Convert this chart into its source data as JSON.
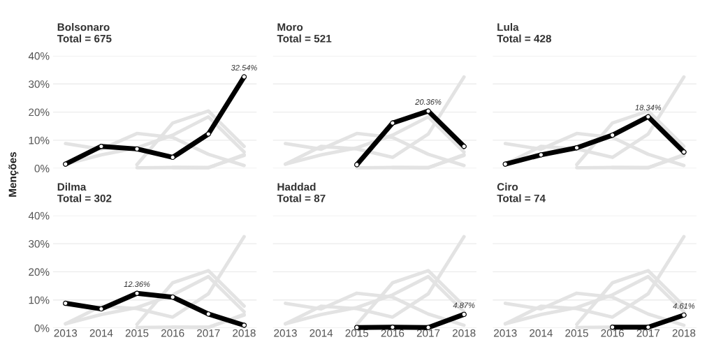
{
  "chart_data": [
    {
      "type": "line",
      "title": "Bolsonaro\nTotal = 675",
      "categories": [
        "2013",
        "2014",
        "2015",
        "2016",
        "2017",
        "2018"
      ],
      "ylim": [
        0,
        40
      ],
      "yticks": [
        {
          "value": 0,
          "label": "0%"
        },
        {
          "value": 10,
          "label": "10%"
        },
        {
          "value": 20,
          "label": "20%"
        },
        {
          "value": 30,
          "label": "30%"
        },
        {
          "value": 40,
          "label": "40%"
        }
      ],
      "grid": "y",
      "legend": false,
      "tick_labels": "y",
      "series": [
        {
          "color": "#e3e3e3",
          "values": [
            null,
            null,
            1.3,
            16.1,
            20.4,
            7.8
          ]
        },
        {
          "color": "#e3e3e3",
          "values": [
            1.5,
            4.8,
            7.3,
            11.8,
            18.3,
            5.8
          ]
        },
        {
          "color": "#e3e3e3",
          "values": [
            8.8,
            6.8,
            12.4,
            11.0,
            5.0,
            1.0
          ]
        },
        {
          "color": "#e3e3e3",
          "values": [
            null,
            null,
            null,
            0.3,
            0.3,
            4.6
          ]
        },
        {
          "color": "#e3e3e3",
          "values": [
            null,
            null,
            0.2,
            0.3,
            0.2,
            4.9
          ]
        },
        {
          "color": "#000000",
          "marker": "circle",
          "values": [
            1.5,
            7.8,
            6.9,
            3.9,
            12.2,
            32.54
          ],
          "value_labels": [
            null,
            null,
            null,
            null,
            null,
            "32.54%"
          ]
        }
      ]
    },
    {
      "type": "line",
      "title": "Moro\nTotal = 521",
      "categories": [
        "2013",
        "2014",
        "2015",
        "2016",
        "2017",
        "2018"
      ],
      "ylim": [
        0,
        40
      ],
      "yticks": [
        {
          "value": 0,
          "label": null
        },
        {
          "value": 10,
          "label": null
        },
        {
          "value": 20,
          "label": null
        },
        {
          "value": 30,
          "label": null
        },
        {
          "value": 40,
          "label": null
        }
      ],
      "grid": "y",
      "legend": false,
      "tick_labels": false,
      "series": [
        {
          "color": "#e3e3e3",
          "values": [
            1.5,
            7.8,
            6.9,
            3.9,
            12.2,
            32.5
          ]
        },
        {
          "color": "#e3e3e3",
          "values": [
            1.5,
            4.8,
            7.3,
            11.8,
            18.3,
            5.8
          ]
        },
        {
          "color": "#e3e3e3",
          "values": [
            8.8,
            6.8,
            12.4,
            11.0,
            5.0,
            1.0
          ]
        },
        {
          "color": "#e3e3e3",
          "values": [
            null,
            null,
            0.2,
            0.3,
            0.2,
            4.9
          ]
        },
        {
          "color": "#e3e3e3",
          "values": [
            null,
            null,
            null,
            0.3,
            0.3,
            4.6
          ]
        },
        {
          "color": "#000000",
          "marker": "circle",
          "values": [
            null,
            null,
            1.3,
            16.1,
            20.36,
            7.8
          ],
          "value_labels": [
            null,
            null,
            null,
            null,
            "20.36%",
            null
          ]
        }
      ]
    },
    {
      "type": "line",
      "title": "Lula\nTotal = 428",
      "categories": [
        "2013",
        "2014",
        "2015",
        "2016",
        "2017",
        "2018"
      ],
      "ylim": [
        0,
        40
      ],
      "yticks": [
        {
          "value": 0,
          "label": null
        },
        {
          "value": 10,
          "label": null
        },
        {
          "value": 20,
          "label": null
        },
        {
          "value": 30,
          "label": null
        },
        {
          "value": 40,
          "label": null
        }
      ],
      "grid": "y",
      "legend": false,
      "tick_labels": false,
      "series": [
        {
          "color": "#e3e3e3",
          "values": [
            1.5,
            7.8,
            6.9,
            3.9,
            12.2,
            32.5
          ]
        },
        {
          "color": "#e3e3e3",
          "values": [
            null,
            null,
            1.3,
            16.1,
            20.4,
            7.8
          ]
        },
        {
          "color": "#e3e3e3",
          "values": [
            8.8,
            6.8,
            12.4,
            11.0,
            5.0,
            1.0
          ]
        },
        {
          "color": "#e3e3e3",
          "values": [
            null,
            null,
            0.2,
            0.3,
            0.2,
            4.9
          ]
        },
        {
          "color": "#e3e3e3",
          "values": [
            null,
            null,
            null,
            0.3,
            0.3,
            4.6
          ]
        },
        {
          "color": "#000000",
          "marker": "circle",
          "values": [
            1.5,
            4.8,
            7.3,
            11.8,
            18.34,
            5.8
          ],
          "value_labels": [
            null,
            null,
            null,
            null,
            "18.34%",
            null
          ]
        }
      ]
    },
    {
      "type": "line",
      "title": "Dilma\nTotal = 302",
      "ylabel": "Menções",
      "categories": [
        "2013",
        "2014",
        "2015",
        "2016",
        "2017",
        "2018"
      ],
      "ylim": [
        0,
        40
      ],
      "yticks": [
        {
          "value": 0,
          "label": "0%"
        },
        {
          "value": 10,
          "label": "10%"
        },
        {
          "value": 20,
          "label": "20%"
        },
        {
          "value": 30,
          "label": "30%"
        },
        {
          "value": 40,
          "label": "40%"
        }
      ],
      "grid": "y",
      "legend": false,
      "series": [
        {
          "color": "#e3e3e3",
          "values": [
            1.5,
            7.8,
            6.9,
            3.9,
            12.2,
            32.5
          ]
        },
        {
          "color": "#e3e3e3",
          "values": [
            null,
            null,
            1.3,
            16.1,
            20.4,
            7.8
          ]
        },
        {
          "color": "#e3e3e3",
          "values": [
            1.5,
            4.8,
            7.3,
            11.8,
            18.3,
            5.8
          ]
        },
        {
          "color": "#e3e3e3",
          "values": [
            null,
            null,
            0.2,
            0.3,
            0.2,
            4.9
          ]
        },
        {
          "color": "#e3e3e3",
          "values": [
            null,
            null,
            null,
            0.3,
            0.3,
            4.6
          ]
        },
        {
          "color": "#000000",
          "marker": "circle",
          "values": [
            8.8,
            6.8,
            12.36,
            11.0,
            5.0,
            1.0
          ],
          "value_labels": [
            null,
            null,
            "12.36%",
            null,
            null,
            null
          ]
        }
      ]
    },
    {
      "type": "line",
      "title": "Haddad\nTotal = 87",
      "categories": [
        "2013",
        "2014",
        "2015",
        "2016",
        "2017",
        "2018"
      ],
      "ylim": [
        0,
        40
      ],
      "yticks": [
        {
          "value": 0,
          "label": null
        },
        {
          "value": 10,
          "label": null
        },
        {
          "value": 20,
          "label": null
        },
        {
          "value": 30,
          "label": null
        },
        {
          "value": 40,
          "label": null
        }
      ],
      "grid": "y",
      "legend": false,
      "tick_labels": "x",
      "series": [
        {
          "color": "#e3e3e3",
          "values": [
            1.5,
            7.8,
            6.9,
            3.9,
            12.2,
            32.5
          ]
        },
        {
          "color": "#e3e3e3",
          "values": [
            null,
            null,
            1.3,
            16.1,
            20.4,
            7.8
          ]
        },
        {
          "color": "#e3e3e3",
          "values": [
            1.5,
            4.8,
            7.3,
            11.8,
            18.3,
            5.8
          ]
        },
        {
          "color": "#e3e3e3",
          "values": [
            8.8,
            6.8,
            12.4,
            11.0,
            5.0,
            1.0
          ]
        },
        {
          "color": "#000000",
          "marker": "circle",
          "values": [
            null,
            null,
            0.2,
            0.3,
            0.2,
            4.87
          ],
          "value_labels": [
            null,
            null,
            null,
            null,
            null,
            "4.87%"
          ]
        }
      ]
    },
    {
      "type": "line",
      "title": "Ciro\nTotal = 74",
      "categories": [
        "2013",
        "2014",
        "2015",
        "2016",
        "2017",
        "2018"
      ],
      "ylim": [
        0,
        40
      ],
      "yticks": [
        {
          "value": 0,
          "label": null
        },
        {
          "value": 10,
          "label": null
        },
        {
          "value": 20,
          "label": null
        },
        {
          "value": 30,
          "label": null
        },
        {
          "value": 40,
          "label": null
        }
      ],
      "grid": "y",
      "legend": false,
      "tick_labels": "x",
      "series": [
        {
          "color": "#e3e3e3",
          "values": [
            1.5,
            7.8,
            6.9,
            3.9,
            12.2,
            32.5
          ]
        },
        {
          "color": "#e3e3e3",
          "values": [
            null,
            null,
            1.3,
            16.1,
            20.4,
            7.8
          ]
        },
        {
          "color": "#e3e3e3",
          "values": [
            1.5,
            4.8,
            7.3,
            11.8,
            18.3,
            5.8
          ]
        },
        {
          "color": "#e3e3e3",
          "values": [
            8.8,
            6.8,
            12.4,
            11.0,
            5.0,
            1.0
          ]
        },
        {
          "color": "#e3e3e3",
          "values": [
            null,
            null,
            0.2,
            0.3,
            0.2,
            4.9
          ]
        },
        {
          "color": "#000000",
          "marker": "circle",
          "values": [
            null,
            null,
            null,
            0.3,
            0.3,
            4.61
          ],
          "value_labels": [
            null,
            null,
            null,
            null,
            null,
            "4.61%"
          ]
        }
      ]
    }
  ]
}
